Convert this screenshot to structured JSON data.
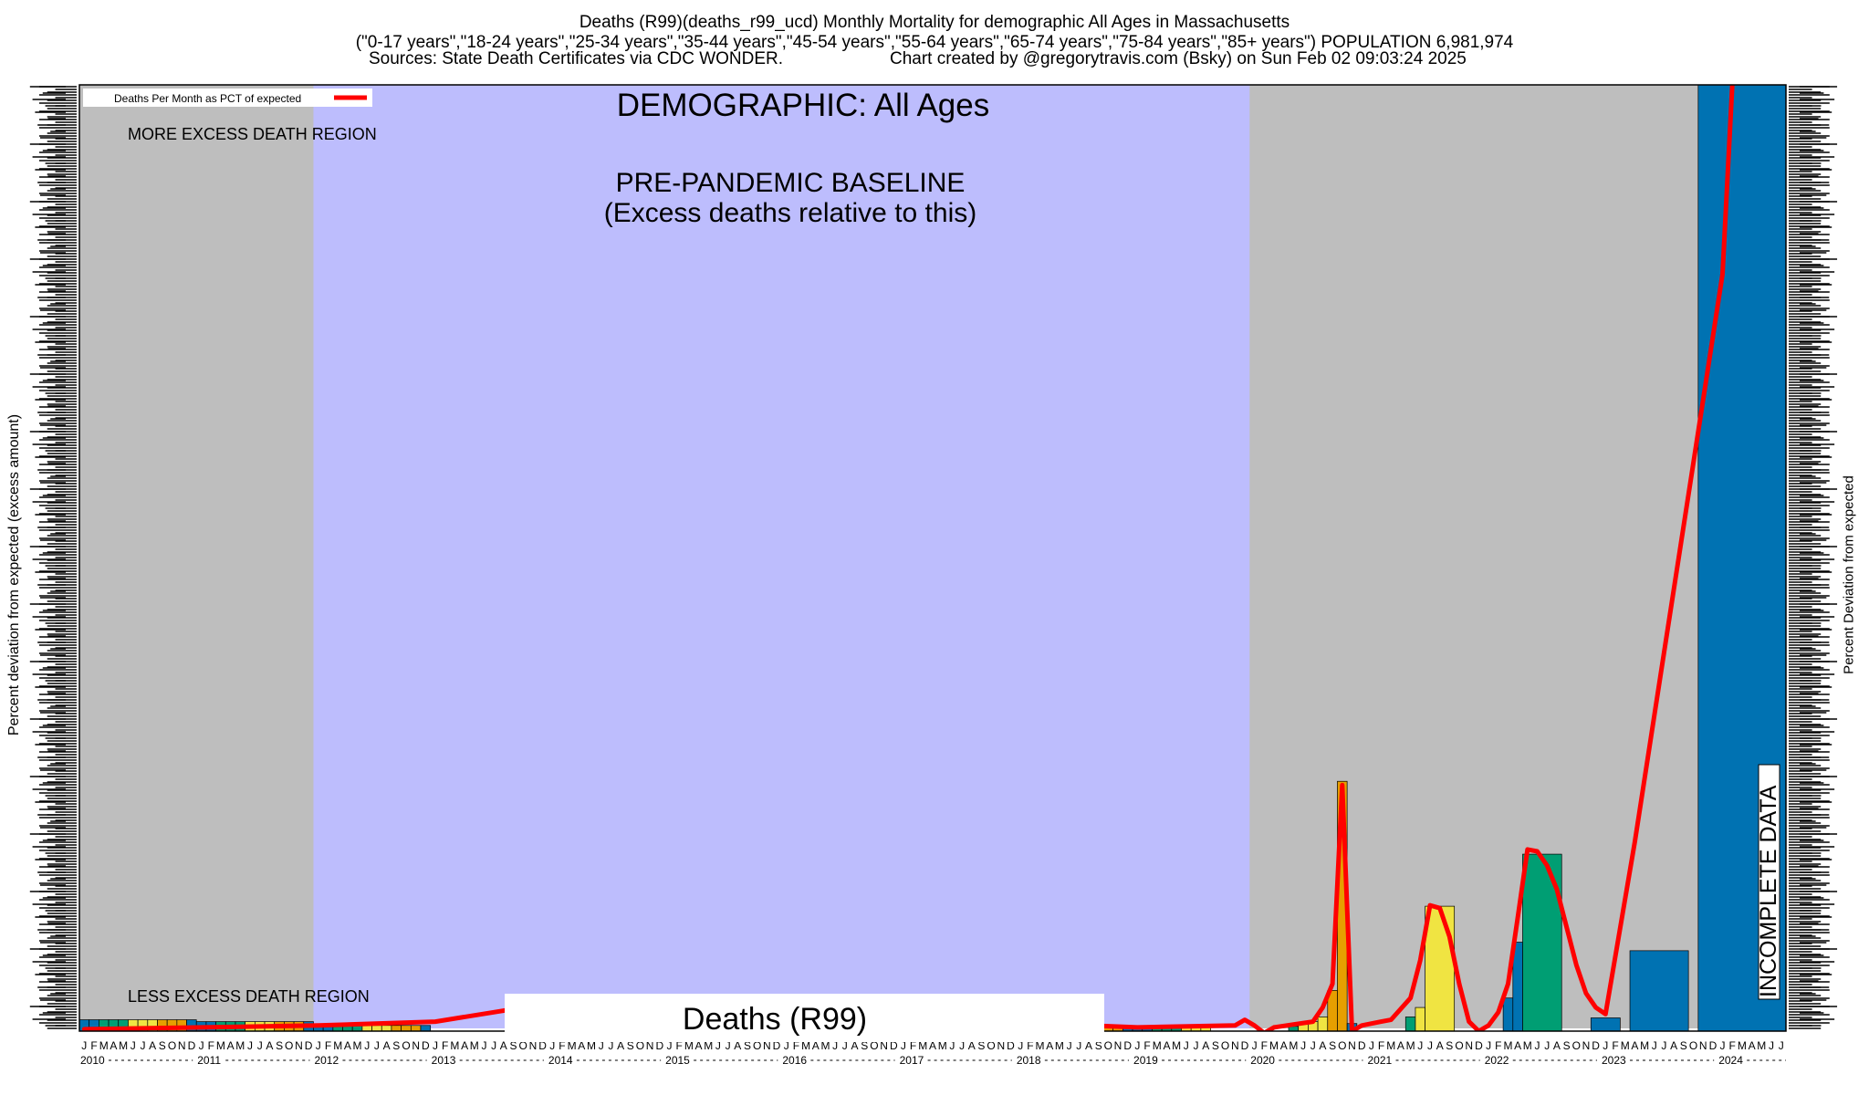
{
  "header": {
    "title_line1": "Deaths (R99)(deaths_r99_ucd) Monthly Mortality for demographic All Ages in Massachusetts",
    "title_line2": "(\"0-17 years\",\"18-24 years\",\"25-34 years\",\"35-44 years\",\"45-54 years\",\"55-64 years\",\"65-74 years\",\"75-84 years\",\"85+ years\") POPULATION 6,981,974",
    "sources": "Sources: State Death Certificates via CDC WONDER.",
    "credit": "Chart created by @gregorytravis.com (Bsky) on Sun Feb 02 09:03:24 2025"
  },
  "chart_data": {
    "type": "bar",
    "ylabel_left": "Percent deviation from expected (excess amount)",
    "ylabel_right": "Percent Deviation from expected",
    "legend": {
      "label": "Deaths Per Month as PCT of expected",
      "position": "top-left",
      "line_color": "#ff0000"
    },
    "annotations": {
      "demographic": "DEMOGRAPHIC: All Ages",
      "more_region": "MORE EXCESS DEATH REGION",
      "less_region": "LESS EXCESS DEATH REGION",
      "baseline_line1": "PRE-PANDEMIC BASELINE",
      "baseline_line2": "(Excess deaths relative to this)",
      "series_label": "Deaths (R99)",
      "incomplete": "INCOMPLETE DATA"
    },
    "x_start": "2010-01",
    "month_count": 175,
    "years": [
      "2010",
      "2011",
      "2012",
      "2013",
      "2014",
      "2015",
      "2016",
      "2017",
      "2018",
      "2019",
      "2020",
      "2021",
      "2022",
      "2023",
      "2024"
    ],
    "month_letters": [
      "J",
      "F",
      "M",
      "A",
      "M",
      "J",
      "J",
      "A",
      "S",
      "O",
      "N",
      "D"
    ],
    "baseline_period": [
      "2012-01",
      "2019-12"
    ],
    "incomplete_period": [
      "2024-06",
      "2024-07"
    ],
    "ylim": [
      0,
      100
    ],
    "colors": {
      "background_grey": "#bebebe",
      "baseline_fill": "#bdbdfd",
      "bar_palette": [
        "#0072b2",
        "#009e73",
        "#f0e442",
        "#e69f00"
      ],
      "line": "#ff0000"
    },
    "bars": [
      {
        "start": 0,
        "span": 1,
        "value": 1.2,
        "color": "#0072b2"
      },
      {
        "start": 1,
        "span": 1,
        "value": 1.2,
        "color": "#0072b2"
      },
      {
        "start": 2,
        "span": 1,
        "value": 1.2,
        "color": "#009e73"
      },
      {
        "start": 3,
        "span": 1,
        "value": 1.2,
        "color": "#009e73"
      },
      {
        "start": 4,
        "span": 1,
        "value": 1.2,
        "color": "#009e73"
      },
      {
        "start": 5,
        "span": 1,
        "value": 1.2,
        "color": "#f0e442"
      },
      {
        "start": 6,
        "span": 1,
        "value": 1.2,
        "color": "#f0e442"
      },
      {
        "start": 7,
        "span": 1,
        "value": 1.2,
        "color": "#f0e442"
      },
      {
        "start": 8,
        "span": 1,
        "value": 1.2,
        "color": "#e69f00"
      },
      {
        "start": 9,
        "span": 1,
        "value": 1.2,
        "color": "#e69f00"
      },
      {
        "start": 10,
        "span": 1,
        "value": 1.2,
        "color": "#e69f00"
      },
      {
        "start": 11,
        "span": 1,
        "value": 1.2,
        "color": "#0072b2"
      },
      {
        "start": 12,
        "span": 1,
        "value": 1.0,
        "color": "#0072b2"
      },
      {
        "start": 13,
        "span": 1,
        "value": 1.0,
        "color": "#0072b2"
      },
      {
        "start": 14,
        "span": 1,
        "value": 1.0,
        "color": "#009e73"
      },
      {
        "start": 15,
        "span": 1,
        "value": 1.0,
        "color": "#009e73"
      },
      {
        "start": 16,
        "span": 1,
        "value": 1.0,
        "color": "#009e73"
      },
      {
        "start": 17,
        "span": 1,
        "value": 1.0,
        "color": "#f0e442"
      },
      {
        "start": 18,
        "span": 1,
        "value": 1.0,
        "color": "#f0e442"
      },
      {
        "start": 19,
        "span": 1,
        "value": 1.0,
        "color": "#f0e442"
      },
      {
        "start": 20,
        "span": 1,
        "value": 1.0,
        "color": "#e69f00"
      },
      {
        "start": 21,
        "span": 1,
        "value": 1.0,
        "color": "#e69f00"
      },
      {
        "start": 22,
        "span": 1,
        "value": 1.0,
        "color": "#e69f00"
      },
      {
        "start": 23,
        "span": 1,
        "value": 1.0,
        "color": "#0072b2"
      },
      {
        "start": 24,
        "span": 1,
        "value": 0.6,
        "color": "#0072b2"
      },
      {
        "start": 25,
        "span": 1,
        "value": 0.6,
        "color": "#0072b2"
      },
      {
        "start": 26,
        "span": 1,
        "value": 0.6,
        "color": "#009e73"
      },
      {
        "start": 27,
        "span": 1,
        "value": 0.6,
        "color": "#009e73"
      },
      {
        "start": 28,
        "span": 1,
        "value": 0.6,
        "color": "#009e73"
      },
      {
        "start": 29,
        "span": 1,
        "value": 0.6,
        "color": "#f0e442"
      },
      {
        "start": 30,
        "span": 1,
        "value": 0.6,
        "color": "#f0e442"
      },
      {
        "start": 31,
        "span": 1,
        "value": 0.6,
        "color": "#f0e442"
      },
      {
        "start": 32,
        "span": 1,
        "value": 0.6,
        "color": "#e69f00"
      },
      {
        "start": 33,
        "span": 1,
        "value": 0.6,
        "color": "#e69f00"
      },
      {
        "start": 34,
        "span": 1,
        "value": 0.6,
        "color": "#e69f00"
      },
      {
        "start": 35,
        "span": 1,
        "value": 0.6,
        "color": "#0072b2"
      },
      {
        "start": 104,
        "span": 1,
        "value": 0.4,
        "color": "#e69f00"
      },
      {
        "start": 105,
        "span": 1,
        "value": 0.4,
        "color": "#e69f00"
      },
      {
        "start": 106,
        "span": 1,
        "value": 0.4,
        "color": "#e69f00"
      },
      {
        "start": 107,
        "span": 1,
        "value": 0.4,
        "color": "#0072b2"
      },
      {
        "start": 108,
        "span": 1,
        "value": 0.4,
        "color": "#0072b2"
      },
      {
        "start": 109,
        "span": 1,
        "value": 0.4,
        "color": "#0072b2"
      },
      {
        "start": 110,
        "span": 1,
        "value": 0.4,
        "color": "#009e73"
      },
      {
        "start": 111,
        "span": 1,
        "value": 0.4,
        "color": "#009e73"
      },
      {
        "start": 112,
        "span": 1,
        "value": 0.4,
        "color": "#009e73"
      },
      {
        "start": 113,
        "span": 1,
        "value": 0.4,
        "color": "#f0e442"
      },
      {
        "start": 114,
        "span": 1,
        "value": 0.4,
        "color": "#f0e442"
      },
      {
        "start": 115,
        "span": 1,
        "value": 0.4,
        "color": "#f0e442"
      },
      {
        "start": 124,
        "span": 1,
        "value": 0.5,
        "color": "#009e73"
      },
      {
        "start": 125,
        "span": 1,
        "value": 0.8,
        "color": "#f0e442"
      },
      {
        "start": 126,
        "span": 1,
        "value": 1.0,
        "color": "#f0e442"
      },
      {
        "start": 127,
        "span": 1,
        "value": 1.5,
        "color": "#f0e442"
      },
      {
        "start": 128,
        "span": 1,
        "value": 4.3,
        "color": "#e69f00"
      },
      {
        "start": 129,
        "span": 1,
        "value": 26.4,
        "color": "#e69f00"
      },
      {
        "start": 130,
        "span": 1,
        "value": 0.8,
        "color": "#0072b2"
      },
      {
        "start": 136,
        "span": 1,
        "value": 1.5,
        "color": "#009e73"
      },
      {
        "start": 137,
        "span": 1,
        "value": 2.5,
        "color": "#f0e442"
      },
      {
        "start": 138,
        "span": 3,
        "value": 13.2,
        "color": "#f0e442"
      },
      {
        "start": 146,
        "span": 1,
        "value": 3.5,
        "color": "#0072b2"
      },
      {
        "start": 147,
        "span": 1,
        "value": 9.4,
        "color": "#0072b2"
      },
      {
        "start": 148,
        "span": 4,
        "value": 18.7,
        "color": "#009e73"
      },
      {
        "start": 155,
        "span": 3,
        "value": 1.4,
        "color": "#0072b2"
      },
      {
        "start": 159,
        "span": 6,
        "value": 8.5,
        "color": "#0072b2"
      },
      {
        "start": 166,
        "span": 9,
        "value": 100,
        "color": "#0072b2"
      }
    ],
    "line": [
      [
        0,
        0.2
      ],
      [
        12,
        0.4
      ],
      [
        24,
        0.6
      ],
      [
        36,
        1.0
      ],
      [
        42,
        2.0
      ],
      [
        48,
        3.0
      ],
      [
        60,
        2.7
      ],
      [
        72,
        1.9
      ],
      [
        84,
        1.2
      ],
      [
        96,
        0.9
      ],
      [
        108,
        0.4
      ],
      [
        118,
        0.6
      ],
      [
        119,
        1.2
      ],
      [
        120,
        0.6
      ],
      [
        121,
        -0.2
      ],
      [
        122,
        0.4
      ],
      [
        124,
        0.7
      ],
      [
        126,
        1.0
      ],
      [
        127,
        2.5
      ],
      [
        128,
        5.0
      ],
      [
        129,
        26.0
      ],
      [
        130,
        0.0
      ],
      [
        131,
        0.6
      ],
      [
        133,
        1.0
      ],
      [
        134,
        1.2
      ],
      [
        136,
        3.5
      ],
      [
        137,
        7.5
      ],
      [
        138,
        13.3
      ],
      [
        139,
        13.0
      ],
      [
        140,
        10.0
      ],
      [
        141,
        5.0
      ],
      [
        142,
        1.0
      ],
      [
        143,
        0.0
      ],
      [
        144,
        0.6
      ],
      [
        145,
        2.0
      ],
      [
        146,
        5.0
      ],
      [
        147,
        12.0
      ],
      [
        148,
        19.2
      ],
      [
        149,
        19.0
      ],
      [
        150,
        17.5
      ],
      [
        151,
        15.0
      ],
      [
        152,
        11.0
      ],
      [
        153,
        7.0
      ],
      [
        154,
        4.0
      ],
      [
        155,
        2.5
      ],
      [
        156,
        1.8
      ],
      [
        159,
        20.0
      ],
      [
        162,
        40.0
      ],
      [
        165,
        60.0
      ],
      [
        168,
        80.0
      ],
      [
        169,
        100.0
      ]
    ]
  }
}
